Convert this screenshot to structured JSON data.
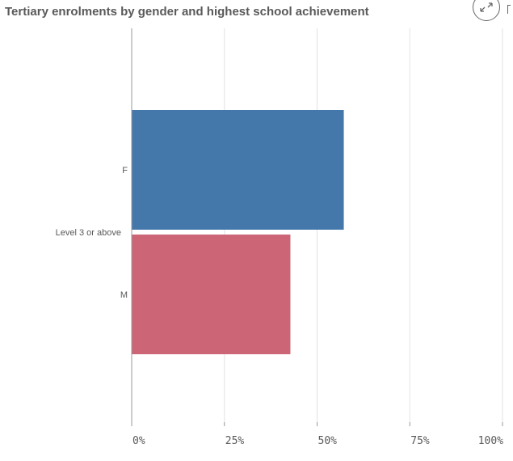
{
  "chart_data": {
    "type": "bar",
    "orientation": "horizontal",
    "title": "Tertiary enrolments by gender and highest school achievement",
    "group": "Level 3 or above",
    "categories": [
      "F",
      "M"
    ],
    "values": [
      57.2,
      42.8
    ],
    "unit": "%",
    "xlim": [
      0,
      100
    ],
    "xticks": [
      "0%",
      "25%",
      "50%",
      "75%",
      "100%"
    ],
    "xlabel": "",
    "ylabel": "",
    "grid": true,
    "colors": [
      "#4477aa",
      "#cc6677"
    ]
  }
}
